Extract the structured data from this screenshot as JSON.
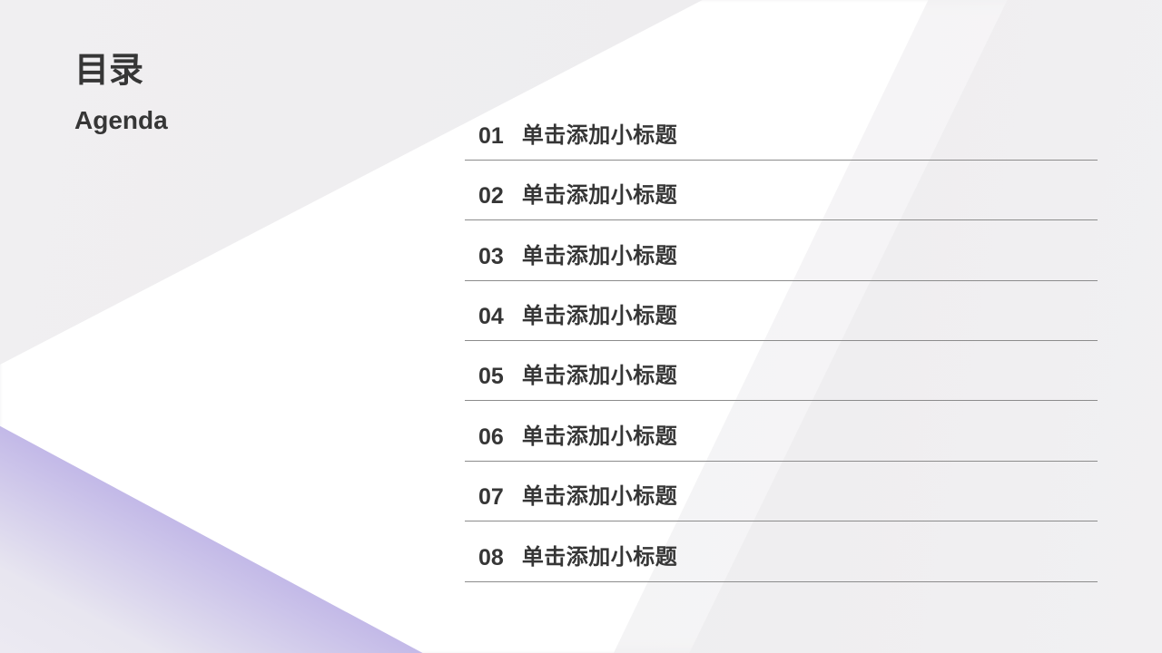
{
  "slide": {
    "title": "目录",
    "subtitle": "Agenda",
    "items": [
      {
        "num": "01",
        "label": "单击添加小标题"
      },
      {
        "num": "02",
        "label": "单击添加小标题"
      },
      {
        "num": "03",
        "label": "单击添加小标题"
      },
      {
        "num": "04",
        "label": "单击添加小标题"
      },
      {
        "num": "05",
        "label": "单击添加小标题"
      },
      {
        "num": "06",
        "label": "单击添加小标题"
      },
      {
        "num": "07",
        "label": "单击添加小标题"
      },
      {
        "num": "08",
        "label": "单击添加小标题"
      }
    ]
  },
  "colors": {
    "background": "#f0eff1",
    "surface_white": "#ffffff",
    "accent_purple": "#a495e3",
    "accent_purple_fade": "#e8e6f0",
    "text_dark": "#363636",
    "divider": "#8c8c8c"
  }
}
